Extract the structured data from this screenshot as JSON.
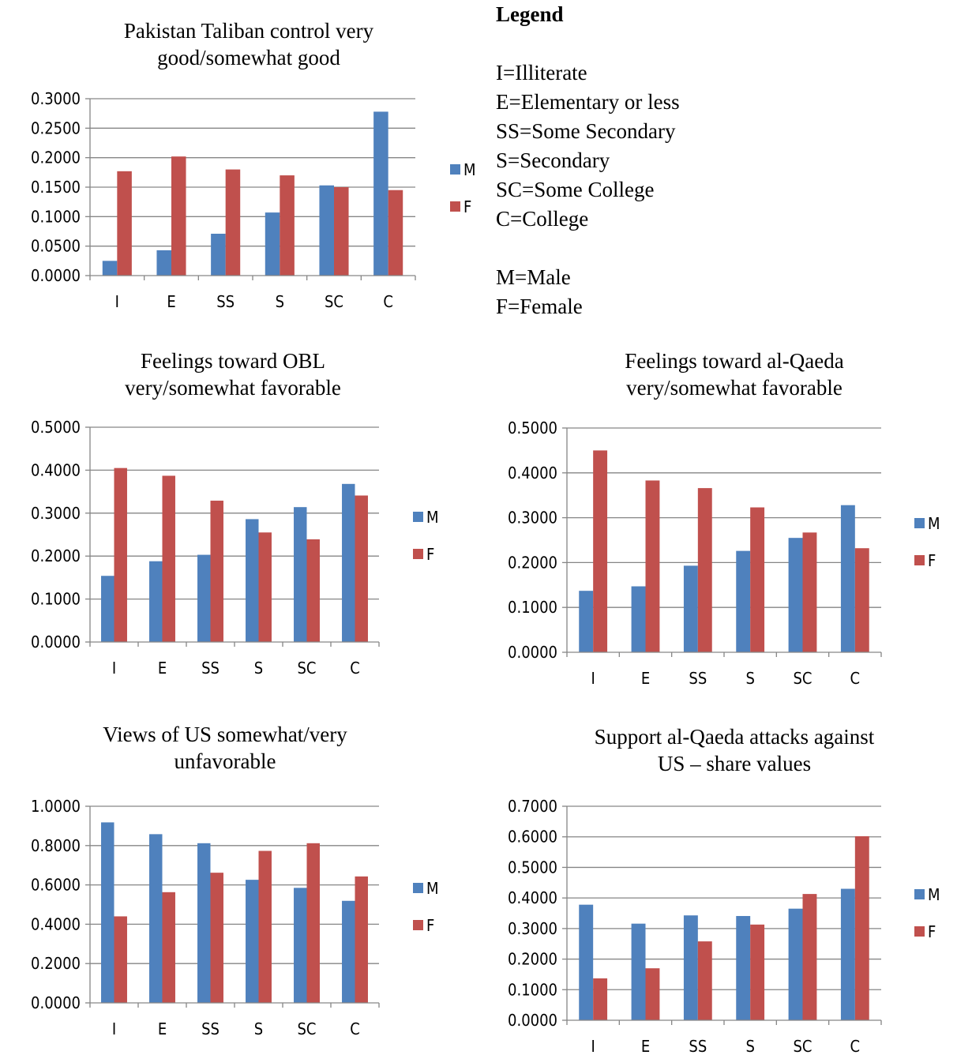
{
  "colors": {
    "male": "#4F81BD",
    "female": "#C0504D",
    "axis": "#868686",
    "grid": "#868686"
  },
  "legend_box": {
    "heading": "Legend",
    "education_lines": [
      "I=Illiterate",
      "E=Elementary or less",
      "SS=Some Secondary",
      "S=Secondary",
      "SC=Some College",
      "C=College"
    ],
    "gender_lines": [
      "M=Male",
      "F=Female"
    ]
  },
  "chart_data": [
    {
      "id": "taliban",
      "type": "bar",
      "title": "Pakistan Taliban control very\ngood/somewhat good",
      "categories": [
        "I",
        "E",
        "SS",
        "S",
        "SC",
        "C"
      ],
      "series": [
        {
          "name": "M",
          "values": [
            0.025,
            0.043,
            0.071,
            0.107,
            0.153,
            0.278
          ]
        },
        {
          "name": "F",
          "values": [
            0.177,
            0.202,
            0.18,
            0.17,
            0.15,
            0.145
          ]
        }
      ],
      "ylim": [
        0,
        0.3
      ],
      "yticks": [
        "0.0000",
        "0.0500",
        "0.1000",
        "0.1500",
        "0.2000",
        "0.2500",
        "0.3000"
      ],
      "grid": true,
      "legend_position": "right"
    },
    {
      "id": "obl",
      "type": "bar",
      "title": "Feelings toward OBL\nvery/somewhat favorable",
      "categories": [
        "I",
        "E",
        "SS",
        "S",
        "SC",
        "C"
      ],
      "series": [
        {
          "name": "M",
          "values": [
            0.154,
            0.188,
            0.203,
            0.286,
            0.314,
            0.368
          ]
        },
        {
          "name": "F",
          "values": [
            0.405,
            0.387,
            0.329,
            0.255,
            0.239,
            0.341
          ]
        }
      ],
      "ylim": [
        0,
        0.5
      ],
      "yticks": [
        "0.0000",
        "0.1000",
        "0.2000",
        "0.3000",
        "0.4000",
        "0.5000"
      ],
      "grid": true,
      "legend_position": "right"
    },
    {
      "id": "alqaeda",
      "type": "bar",
      "title": "Feelings toward al-Qaeda\nvery/somewhat favorable",
      "categories": [
        "I",
        "E",
        "SS",
        "S",
        "SC",
        "C"
      ],
      "series": [
        {
          "name": "M",
          "values": [
            0.137,
            0.147,
            0.193,
            0.226,
            0.255,
            0.328
          ]
        },
        {
          "name": "F",
          "values": [
            0.45,
            0.383,
            0.366,
            0.323,
            0.267,
            0.232
          ]
        }
      ],
      "ylim": [
        0,
        0.5
      ],
      "yticks": [
        "0.0000",
        "0.1000",
        "0.2000",
        "0.3000",
        "0.4000",
        "0.5000"
      ],
      "grid": true,
      "legend_position": "right"
    },
    {
      "id": "usviews",
      "type": "bar",
      "title": "Views of US somewhat/very\nunfavorable",
      "categories": [
        "I",
        "E",
        "SS",
        "S",
        "SC",
        "C"
      ],
      "series": [
        {
          "name": "M",
          "values": [
            0.918,
            0.858,
            0.812,
            0.626,
            0.585,
            0.519
          ]
        },
        {
          "name": "F",
          "values": [
            0.44,
            0.563,
            0.662,
            0.773,
            0.812,
            0.643
          ]
        }
      ],
      "ylim": [
        0,
        1.0
      ],
      "yticks": [
        "0.0000",
        "0.2000",
        "0.4000",
        "0.6000",
        "0.8000",
        "1.0000"
      ],
      "grid": true,
      "legend_position": "right"
    },
    {
      "id": "attacks",
      "type": "bar",
      "title": "Support al-Qaeda attacks against\nUS – share values",
      "categories": [
        "I",
        "E",
        "SS",
        "S",
        "SC",
        "C"
      ],
      "series": [
        {
          "name": "M",
          "values": [
            0.378,
            0.316,
            0.343,
            0.341,
            0.365,
            0.43
          ]
        },
        {
          "name": "F",
          "values": [
            0.137,
            0.17,
            0.258,
            0.313,
            0.413,
            0.602
          ]
        }
      ],
      "ylim": [
        0,
        0.7
      ],
      "yticks": [
        "0.0000",
        "0.1000",
        "0.2000",
        "0.3000",
        "0.4000",
        "0.5000",
        "0.6000",
        "0.7000"
      ],
      "grid": true,
      "legend_position": "right"
    }
  ]
}
